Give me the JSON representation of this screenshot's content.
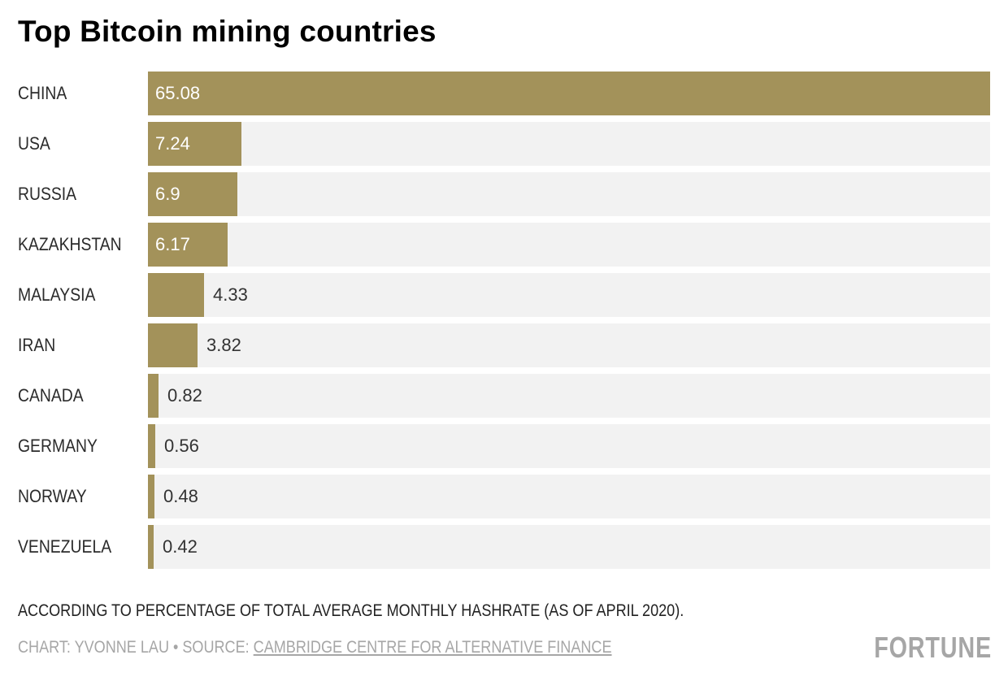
{
  "chart_data": {
    "type": "bar",
    "orientation": "horizontal",
    "title": "Top Bitcoin mining countries",
    "xlabel": "",
    "ylabel": "",
    "xlim": [
      0,
      65.08
    ],
    "categories": [
      "CHINA",
      "USA",
      "RUSSIA",
      "KAZAKHSTAN",
      "MALAYSIA",
      "IRAN",
      "CANADA",
      "GERMANY",
      "NORWAY",
      "VENEZUELA"
    ],
    "values": [
      65.08,
      7.24,
      6.9,
      6.17,
      4.33,
      3.82,
      0.82,
      0.56,
      0.48,
      0.42
    ],
    "value_labels": [
      "65.08",
      "7.24",
      "6.9",
      "6.17",
      "4.33",
      "3.82",
      "0.82",
      "0.56",
      "0.48",
      "0.42"
    ],
    "grid": false,
    "legend": "none",
    "bar_color": "#a3925a",
    "track_color": "#f2f2f2"
  },
  "footer": {
    "note": "ACCORDING TO PERCENTAGE OF TOTAL AVERAGE MONTHLY HASHRATE (AS OF APRIL 2020).",
    "credit_prefix": "CHART: YVONNE LAU • SOURCE: ",
    "source_link": "CAMBRIDGE CENTRE FOR ALTERNATIVE FINANCE",
    "logo": "FORTUNE"
  }
}
